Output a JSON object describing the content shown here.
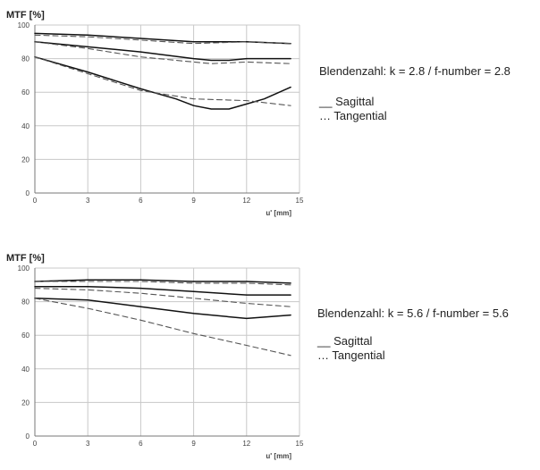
{
  "chart_data": [
    {
      "type": "line",
      "ylabel": "MTF [%]",
      "xlabel": "u' [mm]",
      "xlim": [
        0,
        15
      ],
      "ylim": [
        0,
        100
      ],
      "xticks": [
        "0",
        "3",
        "6",
        "9",
        "12",
        "15"
      ],
      "yticks": [
        "0",
        "20",
        "40",
        "60",
        "80",
        "100"
      ],
      "grid": true,
      "annotation": "Blendenzahl: k = 2.8 / f-number = 2.8",
      "legend": [
        "__ Sagittal",
        "… Tangential"
      ],
      "legend_position": "right",
      "series": [
        {
          "style": "solid",
          "x": [
            0,
            3,
            6,
            9,
            12,
            14.5
          ],
          "y": [
            95,
            94,
            92,
            90,
            90,
            89
          ]
        },
        {
          "style": "dashed",
          "x": [
            0,
            3,
            6,
            9,
            12,
            14.5
          ],
          "y": [
            94,
            93,
            91,
            89,
            90,
            89
          ]
        },
        {
          "style": "solid",
          "x": [
            0,
            3,
            6,
            9,
            10,
            11,
            12,
            14.5
          ],
          "y": [
            90,
            87,
            84,
            80,
            79,
            79,
            80,
            80
          ]
        },
        {
          "style": "dashed",
          "x": [
            0,
            3,
            6,
            9,
            10,
            12,
            14.5
          ],
          "y": [
            90,
            86,
            81,
            78,
            77,
            78,
            77
          ]
        },
        {
          "style": "solid",
          "x": [
            0,
            3,
            6,
            8,
            9,
            10,
            11,
            12,
            13,
            14.5
          ],
          "y": [
            81,
            72,
            62,
            56,
            52,
            50,
            50,
            53,
            56,
            63
          ]
        },
        {
          "style": "dashed",
          "x": [
            0,
            3,
            6,
            9,
            12,
            14.5
          ],
          "y": [
            81,
            71,
            61,
            56,
            55,
            52
          ]
        }
      ]
    },
    {
      "type": "line",
      "ylabel": "MTF [%]",
      "xlabel": "u' [mm]",
      "xlim": [
        0,
        15
      ],
      "ylim": [
        0,
        100
      ],
      "xticks": [
        "0",
        "3",
        "6",
        "9",
        "12",
        "15"
      ],
      "yticks": [
        "0",
        "20",
        "40",
        "60",
        "80",
        "100"
      ],
      "grid": true,
      "annotation": "Blendenzahl: k = 5.6 / f-number = 5.6",
      "legend": [
        "__ Sagittal",
        "… Tangential"
      ],
      "legend_position": "right",
      "series": [
        {
          "style": "solid",
          "x": [
            0,
            3,
            6,
            9,
            12,
            14.5
          ],
          "y": [
            92,
            93,
            93,
            92,
            92,
            91
          ]
        },
        {
          "style": "dashed",
          "x": [
            0,
            3,
            6,
            9,
            12,
            14.5
          ],
          "y": [
            92,
            92,
            92,
            91,
            91,
            90
          ]
        },
        {
          "style": "solid",
          "x": [
            0,
            3,
            6,
            9,
            12,
            14.5
          ],
          "y": [
            89,
            89,
            88,
            86,
            84,
            84
          ]
        },
        {
          "style": "dashed",
          "x": [
            0,
            3,
            6,
            9,
            12,
            14.5
          ],
          "y": [
            88,
            87,
            85,
            82,
            79,
            77
          ]
        },
        {
          "style": "solid",
          "x": [
            0,
            3,
            6,
            9,
            12,
            14.5
          ],
          "y": [
            82,
            81,
            77,
            73,
            70,
            72
          ]
        },
        {
          "style": "dashed",
          "x": [
            0,
            3,
            6,
            9,
            12,
            14.5
          ],
          "y": [
            82,
            76,
            69,
            61,
            54,
            48
          ]
        }
      ]
    }
  ]
}
